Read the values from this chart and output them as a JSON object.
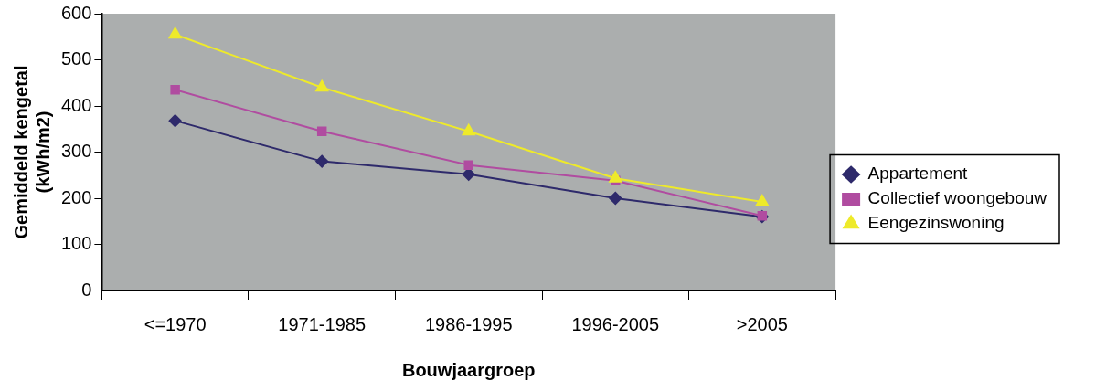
{
  "chart_data": {
    "type": "line",
    "xlabel": "Bouwjaargroep",
    "ylabel": "Gemiddeld kengetal\n(kWh/m2)",
    "categories": [
      "<=1970",
      "1971-1985",
      "1986-1995",
      "1996-2005",
      ">2005"
    ],
    "series": [
      {
        "name": "Appartement",
        "color": "#2e2a6b",
        "marker": "diamond",
        "values": [
          368,
          280,
          252,
          200,
          160
        ]
      },
      {
        "name": "Collectief woongebouw",
        "color": "#b04ca0",
        "marker": "square",
        "values": [
          435,
          345,
          272,
          238,
          162
        ]
      },
      {
        "name": "Eengezinswoning",
        "color": "#eeea2a",
        "marker": "triangle",
        "values": [
          555,
          440,
          345,
          243,
          192
        ]
      }
    ],
    "ylim": [
      0,
      600
    ],
    "yticks": [
      0,
      100,
      200,
      300,
      400,
      500,
      600
    ],
    "grid": false,
    "legend": "right",
    "line_style": "solid"
  }
}
